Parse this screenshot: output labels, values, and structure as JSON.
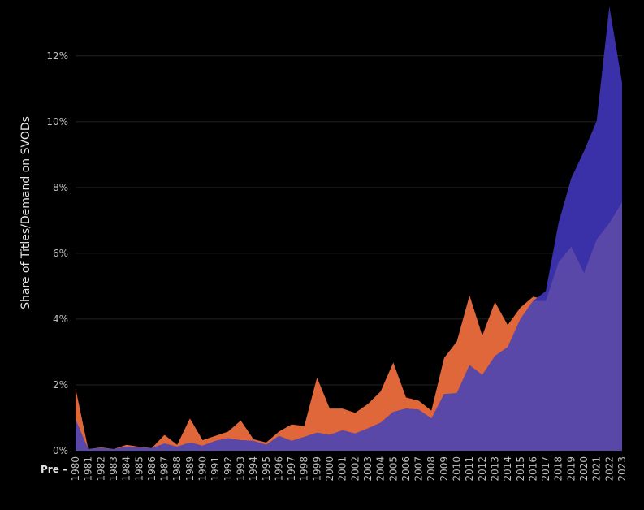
{
  "chart_data": {
    "type": "area",
    "ylabel": "Share of Titles/Demand on SVODs",
    "x_prefix_label": "Pre –",
    "ylim": [
      0,
      13.5
    ],
    "yticks": [
      0,
      2,
      4,
      6,
      8,
      10,
      12
    ],
    "ytick_labels": [
      "0%",
      "2%",
      "4%",
      "6%",
      "8%",
      "10%",
      "12%"
    ],
    "grid": true,
    "categories": [
      "1980",
      "1981",
      "1982",
      "1983",
      "1984",
      "1985",
      "1986",
      "1987",
      "1988",
      "1989",
      "1990",
      "1991",
      "1992",
      "1993",
      "1994",
      "1995",
      "1996",
      "1997",
      "1998",
      "1999",
      "2000",
      "2001",
      "2002",
      "2003",
      "2004",
      "2005",
      "2006",
      "2007",
      "2008",
      "2009",
      "2010",
      "2011",
      "2012",
      "2013",
      "2014",
      "2015",
      "2016",
      "2017",
      "2018",
      "2019",
      "2020",
      "2021",
      "2022",
      "2023"
    ],
    "series": [
      {
        "color": "#e0673a",
        "values": [
          1.9,
          0.05,
          0.1,
          0.05,
          0.18,
          0.12,
          0.08,
          0.48,
          0.18,
          0.98,
          0.32,
          0.45,
          0.58,
          0.92,
          0.35,
          0.25,
          0.58,
          0.8,
          0.75,
          2.22,
          1.28,
          1.28,
          1.15,
          1.42,
          1.8,
          2.68,
          1.62,
          1.52,
          1.22,
          2.82,
          3.32,
          4.72,
          3.5,
          4.52,
          3.82,
          4.35,
          4.68,
          4.6,
          5.85,
          6.2,
          5.4,
          6.42,
          6.92,
          7.55
        ]
      },
      {
        "color": "#3a30a8",
        "values": [
          0.95,
          0.05,
          0.08,
          0.05,
          0.12,
          0.1,
          0.08,
          0.22,
          0.12,
          0.25,
          0.15,
          0.3,
          0.38,
          0.32,
          0.3,
          0.18,
          0.45,
          0.3,
          0.42,
          0.55,
          0.48,
          0.62,
          0.52,
          0.68,
          0.85,
          1.18,
          1.28,
          1.25,
          0.98,
          1.72,
          1.75,
          2.6,
          2.3,
          2.88,
          3.15,
          4.0,
          4.55,
          4.85,
          6.92,
          8.28,
          9.1,
          10.02,
          13.5,
          11.18
        ]
      },
      {
        "color": "#5a48a8",
        "values": [
          0.95,
          0.05,
          0.08,
          0.05,
          0.12,
          0.1,
          0.08,
          0.22,
          0.12,
          0.25,
          0.15,
          0.3,
          0.38,
          0.32,
          0.3,
          0.18,
          0.45,
          0.3,
          0.42,
          0.55,
          0.48,
          0.62,
          0.52,
          0.68,
          0.85,
          1.18,
          1.28,
          1.25,
          0.98,
          1.72,
          1.75,
          2.6,
          2.3,
          2.88,
          3.15,
          4.0,
          4.55,
          4.55,
          5.72,
          6.2,
          5.4,
          6.42,
          6.92,
          7.55
        ]
      }
    ]
  }
}
